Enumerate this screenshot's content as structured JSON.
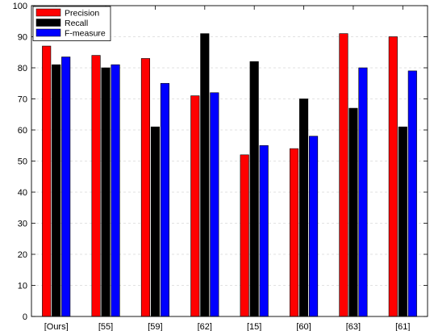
{
  "chart_data": {
    "type": "bar",
    "categories": [
      "[Ours]",
      "[55]",
      "[59]",
      "[62]",
      "[15]",
      "[60]",
      "[63]",
      "[61]"
    ],
    "series": [
      {
        "name": "Precision",
        "color": "#ff0000",
        "values": [
          87,
          84,
          83,
          71,
          52,
          54,
          91,
          90
        ]
      },
      {
        "name": "Recall",
        "color": "#000000",
        "values": [
          81,
          80,
          61,
          91,
          82,
          70,
          67,
          61
        ]
      },
      {
        "name": "F-measure",
        "color": "#0000ff",
        "values": [
          83.5,
          81,
          75,
          72,
          55,
          58,
          80,
          79
        ]
      }
    ],
    "ylim": [
      0,
      100
    ],
    "yticks": [
      0,
      10,
      20,
      30,
      40,
      50,
      60,
      70,
      80,
      90,
      100
    ],
    "grid": "horizontal dashed",
    "legend_position": "top-left"
  }
}
